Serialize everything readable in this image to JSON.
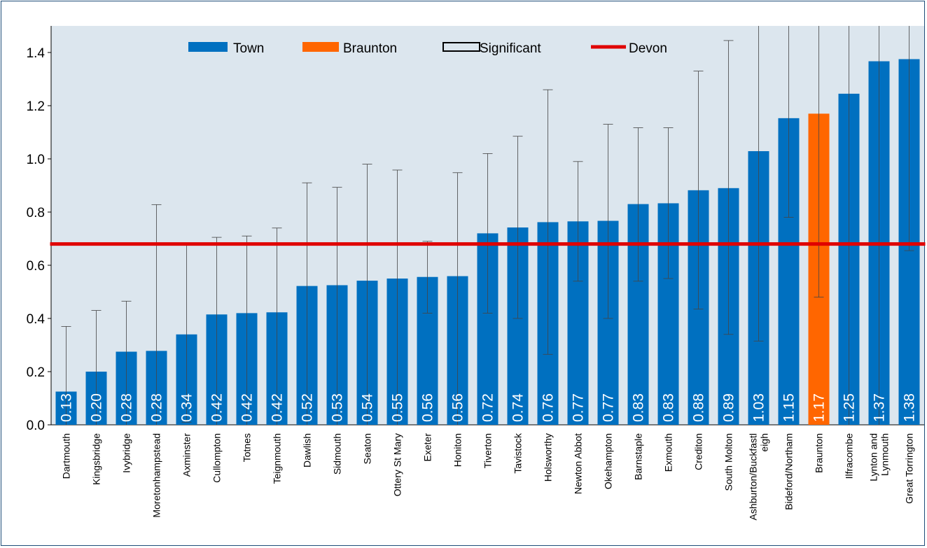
{
  "chart_data": {
    "type": "bar",
    "title": "",
    "xlabel": "",
    "ylabel": "",
    "ylim": [
      0,
      1.5
    ],
    "yticks": [
      "0.0",
      "0.2",
      "0.4",
      "0.6",
      "0.8",
      "1.0",
      "1.2",
      "1.4"
    ],
    "grid": false,
    "legend_position": "top",
    "legend": {
      "town": "Town",
      "braunton": "Braunton",
      "significant": "Significant",
      "devon": "Devon"
    },
    "colors": {
      "town": "#0070c0",
      "braunton": "#ff6600",
      "devon": "#e00000",
      "plot_bg": "#dce6ee"
    },
    "devon_value": 0.68,
    "highlight": "Braunton",
    "categories": [
      "Dartmouth",
      "Kingsbridge",
      "Ivybridge",
      "Moretonhampstead",
      "Axminster",
      "Cullompton",
      "Totnes",
      "Teignmouth",
      "Dawlish",
      "Sidmouth",
      "Seaton",
      "Ottery St Mary",
      "Exeter",
      "Honiton",
      "Tiverton",
      "Tavistock",
      "Holsworthy",
      "Newton Abbot",
      "Okehampton",
      "Barnstaple",
      "Exmouth",
      "Crediton",
      "South Molton",
      "Ashburton/Buckfastl eigh",
      "Bideford/Northam",
      "Braunton",
      "Ilfracombe",
      "Lynton and Lynmouth",
      "Great Torrington"
    ],
    "values": [
      0.125,
      0.2,
      0.275,
      0.278,
      0.34,
      0.415,
      0.42,
      0.423,
      0.522,
      0.525,
      0.542,
      0.55,
      0.556,
      0.559,
      0.72,
      0.742,
      0.762,
      0.765,
      0.767,
      0.83,
      0.833,
      0.882,
      0.89,
      1.029,
      1.153,
      1.17,
      1.245,
      1.367,
      1.375
    ],
    "labels": [
      "0.13",
      "0.20",
      "0.28",
      "0.28",
      "0.34",
      "0.42",
      "0.42",
      "0.42",
      "0.52",
      "0.53",
      "0.54",
      "0.55",
      "0.56",
      "0.56",
      "0.72",
      "0.74",
      "0.76",
      "0.77",
      "0.77",
      "0.83",
      "0.83",
      "0.88",
      "0.89",
      "1.03",
      "1.15",
      "1.17",
      "1.25",
      "1.37",
      "1.38"
    ],
    "ci_low": [
      0.0,
      0.0,
      0.0,
      0.0,
      0.01,
      0.0,
      0.0,
      0.0,
      0.0,
      0.0,
      0.0,
      0.0,
      0.42,
      0.0,
      0.42,
      0.4,
      0.265,
      0.54,
      0.4,
      0.54,
      0.55,
      0.435,
      0.34,
      0.315,
      0.78,
      0.48,
      0.0,
      0.0,
      0.655
    ],
    "ci_high": [
      0.37,
      0.43,
      0.465,
      0.828,
      0.68,
      0.705,
      0.71,
      0.74,
      0.91,
      0.893,
      0.98,
      0.958,
      0.69,
      0.948,
      1.02,
      1.085,
      1.26,
      0.99,
      1.13,
      1.117,
      1.117,
      1.33,
      1.445,
      1.5,
      1.5,
      1.5,
      1.5,
      1.5,
      1.5
    ]
  }
}
